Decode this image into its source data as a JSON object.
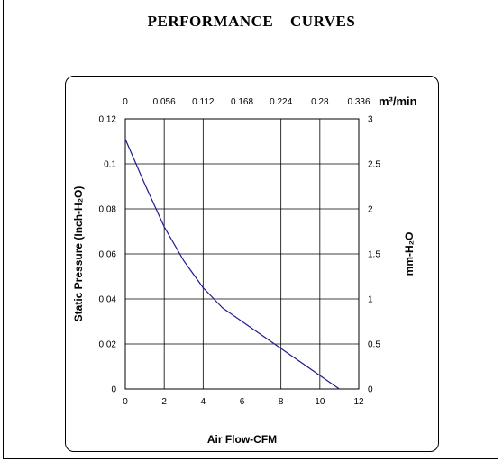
{
  "page": {
    "title": "PERFORMANCE    CURVES"
  },
  "chart_data": {
    "type": "line",
    "title": "PERFORMANCE    CURVES",
    "xlabel": "Air Flow-CFM",
    "ylabel": "Static Pressure (Inch-H₂O)",
    "x2label": "m³/min",
    "y2label": "mm-H₂O",
    "xlim": [
      0,
      12
    ],
    "ylim": [
      0,
      0.12
    ],
    "x2lim": [
      0,
      0.336
    ],
    "y2lim": [
      0,
      3
    ],
    "x_ticks": [
      "0",
      "2",
      "4",
      "6",
      "8",
      "10",
      "12"
    ],
    "y_ticks": [
      "0",
      "0.02",
      "0.04",
      "0.06",
      "0.08",
      "0.1",
      "0.12"
    ],
    "x2_ticks": [
      "0",
      "0.056",
      "0.112",
      "0.168",
      "0.224",
      "0.28",
      "0.336"
    ],
    "y2_ticks": [
      "0",
      "0.5",
      "1",
      "1.5",
      "2",
      "2.5",
      "3"
    ],
    "grid": true,
    "series": [
      {
        "color": "#1c1c8c",
        "x": [
          0,
          1,
          2,
          3,
          4,
          5,
          6,
          7,
          8,
          9,
          10,
          11
        ],
        "y": [
          0.111,
          0.091,
          0.072,
          0.057,
          0.045,
          0.036,
          0.03,
          0.024,
          0.018,
          0.012,
          0.006,
          0.0
        ]
      }
    ]
  }
}
